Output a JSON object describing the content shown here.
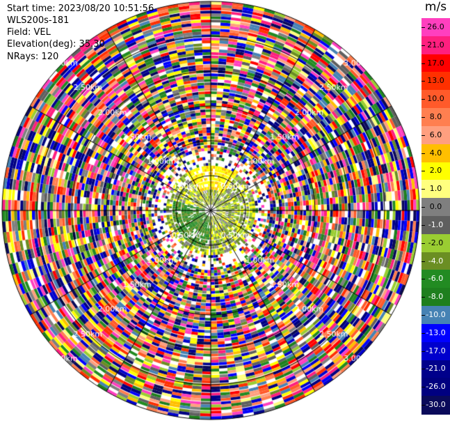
{
  "info": {
    "start_time": "Start time: 2023/08/20 10:51:56",
    "station": "WLS200s-181",
    "field": "Field: VEL",
    "elevation": "Elevation(deg): 35.30",
    "nrays": "NRays: 120"
  },
  "colorbar": {
    "unit": "m/s",
    "ticks": [
      "26.0",
      "21.0",
      "17.0",
      "13.0",
      "10.0",
      "8.0",
      "6.0",
      "4.0",
      "2.0",
      "1.0",
      "0.0",
      "-1.0",
      "-2.0",
      "-4.0",
      "-6.0",
      "-8.0",
      "-10.0",
      "-13.0",
      "-17.0",
      "-21.0",
      "-26.0",
      "-30.0"
    ],
    "colors": [
      "#ff3fbf",
      "#ff1f7f",
      "#ff0000",
      "#ff3000",
      "#ff5a2a",
      "#ff7f50",
      "#ff9f7f",
      "#ffbf00",
      "#ffff00",
      "#ffff7f",
      "#7f7f7f",
      "#5f5f5f",
      "#9acd32",
      "#6b8e23",
      "#228b22",
      "#1e7f1e",
      "#4682b4",
      "#0000ff",
      "#0000cd",
      "#00008b",
      "#000080",
      "#0a0a5a"
    ]
  },
  "range_labels": [
    "0.50km",
    "1.00km",
    "1.50km",
    "2.00km",
    "2.50km",
    "3.00km"
  ],
  "ppi_data": {
    "rays": 120,
    "gates": 70,
    "clear_radius_km": 0.5,
    "max_range_km": 3.0,
    "near_field_colors": [
      "#9acd32",
      "#7f7f7f",
      "#ffff00",
      "#6b8e23"
    ]
  }
}
